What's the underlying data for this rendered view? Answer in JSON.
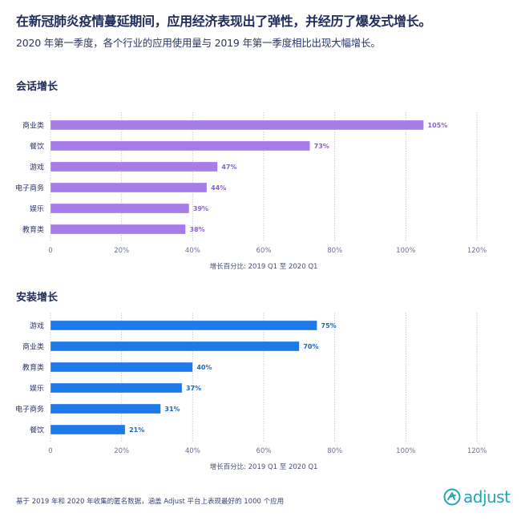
{
  "header": {
    "title": "在新冠肺炎疫情蔓延期间，应用经济表现出了弹性，并经历了爆发式增长。",
    "subtitle": "2020 年第一季度，各个行业的应用使用量与 2019 年第一季度相比出现大幅增长。"
  },
  "footer": {
    "note": "基于 2019 年和 2020 年收集的匿名数据，涵盖 Adjust 平台上表现最好的 1000 个应用",
    "logo_text": "adjust"
  },
  "colors": {
    "sessions": "#a77be8",
    "installs": "#1e7ae8",
    "sessions_label": "#8a5fd6",
    "installs_label": "#1a66c9",
    "logo": "#21a6b7"
  },
  "chart_data": [
    {
      "type": "bar",
      "orientation": "horizontal",
      "title": "会话增长",
      "categories": [
        "商业类",
        "餐饮",
        "游戏",
        "电子商务",
        "娱乐",
        "教育类"
      ],
      "values": [
        105,
        73,
        47,
        44,
        39,
        38
      ],
      "labels": [
        "105%",
        "73%",
        "47%",
        "44%",
        "39%",
        "38%"
      ],
      "xlabel": "增长百分比: 2019 Q1 至 2020 Q1",
      "xlim": [
        0,
        120
      ],
      "xticks": [
        0,
        20,
        40,
        60,
        80,
        100,
        120
      ],
      "xtick_labels": [
        "0",
        "20%",
        "40%",
        "60%",
        "80%",
        "100%",
        "120%"
      ],
      "grid": true
    },
    {
      "type": "bar",
      "orientation": "horizontal",
      "title": "安装增长",
      "categories": [
        "游戏",
        "商业类",
        "教育类",
        "娱乐",
        "电子商务",
        "餐饮"
      ],
      "values": [
        75,
        70,
        40,
        37,
        31,
        21
      ],
      "labels": [
        "75%",
        "70%",
        "40%",
        "37%",
        "31%",
        "21%"
      ],
      "xlabel": "增长百分比: 2019 Q1 至 2020 Q1",
      "xlim": [
        0,
        120
      ],
      "xticks": [
        0,
        20,
        40,
        60,
        80,
        100,
        120
      ],
      "xtick_labels": [
        "0",
        "20%",
        "40%",
        "60%",
        "80%",
        "100%",
        "120%"
      ],
      "grid": true
    }
  ]
}
